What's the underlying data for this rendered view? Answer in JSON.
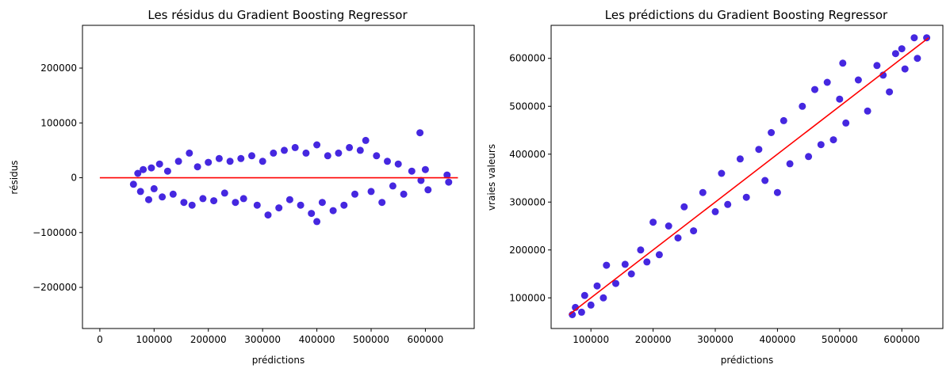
{
  "chart_data": [
    {
      "type": "scatter",
      "title": "Les résidus du Gradient Boosting Regressor",
      "xlabel": "prédictions",
      "ylabel": "résidus",
      "xlim": [
        -32000,
        690000
      ],
      "ylim": [
        -275000,
        278000
      ],
      "xticks": [
        0,
        100000,
        200000,
        300000,
        400000,
        500000,
        600000
      ],
      "xtick_labels": [
        "0",
        "100000",
        "200000",
        "300000",
        "400000",
        "500000",
        "600000"
      ],
      "yticks": [
        -200000,
        -100000,
        0,
        100000,
        200000
      ],
      "ytick_labels": [
        "−200000",
        "−100000",
        "0",
        "100000",
        "200000"
      ],
      "grid": false,
      "point_color": "#4527e0",
      "line_color": "#ff0000",
      "reference_line": {
        "x": [
          0,
          660000
        ],
        "y": [
          0,
          0
        ]
      },
      "points": [
        [
          62000,
          -12000
        ],
        [
          70000,
          8000
        ],
        [
          75000,
          -25000
        ],
        [
          80000,
          15000
        ],
        [
          90000,
          -40000
        ],
        [
          95000,
          18000
        ],
        [
          100000,
          -20000
        ],
        [
          110000,
          25000
        ],
        [
          115000,
          -35000
        ],
        [
          125000,
          12000
        ],
        [
          135000,
          -30000
        ],
        [
          145000,
          30000
        ],
        [
          155000,
          -45000
        ],
        [
          165000,
          45000
        ],
        [
          170000,
          -50000
        ],
        [
          180000,
          20000
        ],
        [
          190000,
          -38000
        ],
        [
          200000,
          28000
        ],
        [
          210000,
          -42000
        ],
        [
          220000,
          35000
        ],
        [
          230000,
          -28000
        ],
        [
          240000,
          30000
        ],
        [
          250000,
          -45000
        ],
        [
          260000,
          35000
        ],
        [
          265000,
          -38000
        ],
        [
          280000,
          40000
        ],
        [
          290000,
          -50000
        ],
        [
          300000,
          30000
        ],
        [
          310000,
          -68000
        ],
        [
          320000,
          45000
        ],
        [
          330000,
          -55000
        ],
        [
          340000,
          50000
        ],
        [
          350000,
          -40000
        ],
        [
          360000,
          55000
        ],
        [
          370000,
          -50000
        ],
        [
          380000,
          45000
        ],
        [
          390000,
          -65000
        ],
        [
          400000,
          60000
        ],
        [
          400000,
          -80000
        ],
        [
          410000,
          -45000
        ],
        [
          420000,
          40000
        ],
        [
          430000,
          -60000
        ],
        [
          440000,
          45000
        ],
        [
          450000,
          -50000
        ],
        [
          460000,
          55000
        ],
        [
          470000,
          -30000
        ],
        [
          480000,
          50000
        ],
        [
          490000,
          68000
        ],
        [
          500000,
          -25000
        ],
        [
          510000,
          40000
        ],
        [
          520000,
          -45000
        ],
        [
          530000,
          30000
        ],
        [
          540000,
          -15000
        ],
        [
          550000,
          25000
        ],
        [
          560000,
          -30000
        ],
        [
          575000,
          12000
        ],
        [
          590000,
          82000
        ],
        [
          592000,
          -5000
        ],
        [
          600000,
          15000
        ],
        [
          605000,
          -22000
        ],
        [
          640000,
          5000
        ],
        [
          643000,
          -8000
        ]
      ]
    },
    {
      "type": "scatter",
      "title": "Les prédictions du Gradient Boosting Regressor",
      "xlabel": "prédictions",
      "ylabel": "vraies valeurs",
      "xlim": [
        36000,
        666000
      ],
      "ylim": [
        36000,
        669000
      ],
      "xticks": [
        100000,
        200000,
        300000,
        400000,
        500000,
        600000
      ],
      "xtick_labels": [
        "100000",
        "200000",
        "300000",
        "400000",
        "500000",
        "600000"
      ],
      "yticks": [
        100000,
        200000,
        300000,
        400000,
        500000,
        600000
      ],
      "ytick_labels": [
        "100000",
        "200000",
        "300000",
        "400000",
        "500000",
        "600000"
      ],
      "grid": false,
      "point_color": "#4527e0",
      "line_color": "#ff0000",
      "reference_line": {
        "x": [
          65000,
          643000
        ],
        "y": [
          65000,
          643000
        ]
      },
      "points": [
        [
          70000,
          65000
        ],
        [
          75000,
          80000
        ],
        [
          85000,
          70000
        ],
        [
          90000,
          105000
        ],
        [
          100000,
          85000
        ],
        [
          110000,
          125000
        ],
        [
          120000,
          100000
        ],
        [
          125000,
          168000
        ],
        [
          140000,
          130000
        ],
        [
          155000,
          170000
        ],
        [
          165000,
          150000
        ],
        [
          180000,
          200000
        ],
        [
          190000,
          175000
        ],
        [
          200000,
          258000
        ],
        [
          210000,
          190000
        ],
        [
          225000,
          250000
        ],
        [
          240000,
          225000
        ],
        [
          250000,
          290000
        ],
        [
          265000,
          240000
        ],
        [
          280000,
          320000
        ],
        [
          300000,
          280000
        ],
        [
          310000,
          360000
        ],
        [
          320000,
          295000
        ],
        [
          340000,
          390000
        ],
        [
          350000,
          310000
        ],
        [
          370000,
          410000
        ],
        [
          380000,
          345000
        ],
        [
          390000,
          445000
        ],
        [
          400000,
          320000
        ],
        [
          410000,
          470000
        ],
        [
          420000,
          380000
        ],
        [
          440000,
          500000
        ],
        [
          450000,
          395000
        ],
        [
          460000,
          535000
        ],
        [
          470000,
          420000
        ],
        [
          480000,
          550000
        ],
        [
          490000,
          430000
        ],
        [
          500000,
          515000
        ],
        [
          505000,
          590000
        ],
        [
          510000,
          465000
        ],
        [
          530000,
          555000
        ],
        [
          545000,
          490000
        ],
        [
          560000,
          585000
        ],
        [
          570000,
          565000
        ],
        [
          580000,
          530000
        ],
        [
          590000,
          610000
        ],
        [
          600000,
          620000
        ],
        [
          605000,
          578000
        ],
        [
          620000,
          643000
        ],
        [
          625000,
          600000
        ],
        [
          640000,
          643000
        ]
      ]
    }
  ]
}
